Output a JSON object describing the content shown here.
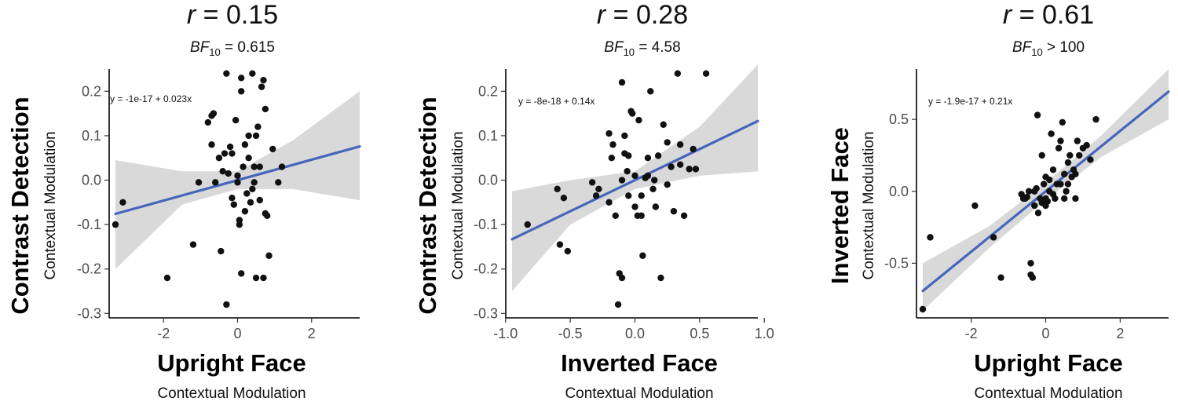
{
  "colors": {
    "point": "#111111",
    "fit_line": "#4466bb",
    "ci_band": "#d9d9d9"
  },
  "chart_data": [
    {
      "type": "scatter",
      "title": "r = 0.15",
      "title_parts": {
        "r_symbol": "r",
        "r_value": " = 0.15"
      },
      "subtitle": "BF10 = 0.615",
      "subtitle_parts": {
        "bf": "BF",
        "sub": "10",
        "rest": " = 0.615"
      },
      "xlabel": "Upright Face",
      "xlabel_sub": "Contextual Modulation",
      "ylabel": "Contrast Detection",
      "ylabel_sub": "Contextual Modulation",
      "xlim": [
        -3.3,
        3.3
      ],
      "ylim": [
        -0.31,
        0.25
      ],
      "xticks": [
        -2,
        0,
        2
      ],
      "yticks": [
        -0.3,
        -0.2,
        -0.1,
        0.0,
        0.1,
        0.2
      ],
      "ytick_labels": [
        "-0.3",
        "-0.2",
        "-0.1",
        "0.0",
        "0.1",
        "0.2"
      ],
      "equation": "y = -1e-17 + 0.023x",
      "fit": {
        "intercept": 0,
        "slope": 0.023
      },
      "ci": [
        [
          -3.3,
          -0.2,
          0.045
        ],
        [
          -1.5,
          -0.055,
          0.02
        ],
        [
          0,
          -0.02,
          0.02
        ],
        [
          1.5,
          -0.02,
          0.09
        ],
        [
          3.3,
          -0.045,
          0.2
        ]
      ],
      "points": [
        [
          -3.3,
          -0.1
        ],
        [
          -3.1,
          -0.05
        ],
        [
          -1.9,
          -0.22
        ],
        [
          -1.2,
          -0.145
        ],
        [
          -1.05,
          -0.005
        ],
        [
          -0.7,
          0.145
        ],
        [
          -0.7,
          0.08
        ],
        [
          -0.65,
          0.15
        ],
        [
          -0.6,
          -0.005
        ],
        [
          -0.5,
          0.05
        ],
        [
          -0.45,
          -0.16
        ],
        [
          -0.4,
          0.02
        ],
        [
          -0.3,
          0.24
        ],
        [
          -0.3,
          -0.28
        ],
        [
          -0.25,
          0.015
        ],
        [
          -0.2,
          0.075
        ],
        [
          -0.15,
          0.06
        ],
        [
          -0.1,
          -0.055
        ],
        [
          -0.05,
          0.135
        ],
        [
          0.0,
          0.01
        ],
        [
          0.05,
          -0.1
        ],
        [
          0.05,
          -0.09
        ],
        [
          0.1,
          0.23
        ],
        [
          0.1,
          0.2
        ],
        [
          0.1,
          -0.21
        ],
        [
          0.15,
          0.03
        ],
        [
          0.2,
          0.08
        ],
        [
          0.25,
          -0.03
        ],
        [
          0.3,
          0.05
        ],
        [
          0.35,
          -0.05
        ],
        [
          0.4,
          0.24
        ],
        [
          0.4,
          -0.02
        ],
        [
          0.45,
          -0.005
        ],
        [
          0.5,
          -0.22
        ],
        [
          0.5,
          0.1
        ],
        [
          0.55,
          0.12
        ],
        [
          0.6,
          -0.045
        ],
        [
          0.65,
          0.21
        ],
        [
          0.7,
          0.225
        ],
        [
          0.7,
          -0.22
        ],
        [
          0.75,
          0.16
        ],
        [
          0.8,
          -0.08
        ],
        [
          0.85,
          -0.17
        ],
        [
          0.95,
          0.07
        ],
        [
          1.1,
          -0.005
        ],
        [
          1.2,
          0.03
        ],
        [
          -0.8,
          0.13
        ],
        [
          0.0,
          -0.005
        ],
        [
          0.3,
          0.1
        ],
        [
          -0.35,
          0.06
        ],
        [
          0.6,
          0.03
        ],
        [
          0.2,
          -0.07
        ],
        [
          -0.15,
          -0.04
        ],
        [
          0.45,
          0.03
        ],
        [
          0.75,
          -0.075
        ]
      ]
    },
    {
      "type": "scatter",
      "title": "r = 0.28",
      "title_parts": {
        "r_symbol": "r",
        "r_value": " = 0.28"
      },
      "subtitle": "BF10 = 4.58",
      "subtitle_parts": {
        "bf": "BF",
        "sub": "10",
        "rest": " = 4.58"
      },
      "xlabel": "Inverted Face",
      "xlabel_sub": "Contextual Modulation",
      "ylabel": "Contrast Detection",
      "ylabel_sub": "Contextual Modulation",
      "xlim": [
        -0.95,
        0.95
      ],
      "ylim": [
        -0.31,
        0.25
      ],
      "xticks": [
        -1.0,
        -0.5,
        0.0,
        0.5,
        1.0
      ],
      "xtick_labels": [
        "-1.0",
        "-0.5",
        "0.0",
        "0.5",
        "1.0"
      ],
      "yticks": [
        -0.3,
        -0.2,
        -0.1,
        0.0,
        0.1,
        0.2
      ],
      "ytick_labels": [
        "-0.3",
        "-0.2",
        "-0.1",
        "0.0",
        "0.1",
        "0.2"
      ],
      "equation": "y = -8e-18 + 0.14x",
      "fit": {
        "intercept": 0,
        "slope": 0.14
      },
      "ci": [
        [
          -0.95,
          -0.25,
          -0.025
        ],
        [
          -0.5,
          -0.1,
          0.0
        ],
        [
          0,
          -0.02,
          0.02
        ],
        [
          0.5,
          0.01,
          0.12
        ],
        [
          0.95,
          0.02,
          0.26
        ]
      ],
      "points": [
        [
          -0.83,
          -0.1
        ],
        [
          -0.6,
          -0.02
        ],
        [
          -0.58,
          -0.145
        ],
        [
          -0.55,
          -0.04
        ],
        [
          -0.52,
          -0.16
        ],
        [
          -0.33,
          -0.005
        ],
        [
          -0.28,
          -0.02
        ],
        [
          -0.2,
          0.105
        ],
        [
          -0.2,
          -0.05
        ],
        [
          -0.17,
          0.08
        ],
        [
          -0.15,
          -0.08
        ],
        [
          -0.13,
          -0.28
        ],
        [
          -0.12,
          -0.21
        ],
        [
          -0.1,
          -0.22
        ],
        [
          -0.1,
          0.22
        ],
        [
          -0.1,
          0.0
        ],
        [
          -0.08,
          0.06
        ],
        [
          -0.06,
          0.02
        ],
        [
          -0.05,
          0.055
        ],
        [
          -0.05,
          -0.035
        ],
        [
          -0.03,
          0.155
        ],
        [
          -0.02,
          0.15
        ],
        [
          0.0,
          -0.06
        ],
        [
          0.02,
          -0.08
        ],
        [
          0.03,
          0.135
        ],
        [
          0.05,
          -0.08
        ],
        [
          0.06,
          -0.17
        ],
        [
          0.08,
          0.005
        ],
        [
          0.1,
          0.01
        ],
        [
          0.12,
          0.2
        ],
        [
          0.14,
          -0.02
        ],
        [
          0.16,
          -0.06
        ],
        [
          0.18,
          0.055
        ],
        [
          0.2,
          -0.22
        ],
        [
          0.22,
          0.125
        ],
        [
          0.25,
          0.085
        ],
        [
          0.28,
          0.03
        ],
        [
          0.3,
          -0.07
        ],
        [
          0.33,
          0.24
        ],
        [
          0.35,
          0.08
        ],
        [
          0.38,
          -0.08
        ],
        [
          0.42,
          0.025
        ],
        [
          0.45,
          0.07
        ],
        [
          0.47,
          0.025
        ],
        [
          0.55,
          0.24
        ],
        [
          -0.18,
          0.05
        ],
        [
          0.1,
          0.05
        ],
        [
          -0.08,
          0.1
        ],
        [
          0.0,
          0.01
        ],
        [
          0.15,
          0.0
        ],
        [
          -0.3,
          -0.035
        ],
        [
          0.25,
          -0.01
        ],
        [
          0.05,
          -0.035
        ],
        [
          0.35,
          0.035
        ]
      ]
    },
    {
      "type": "scatter",
      "title": "r = 0.61",
      "title_parts": {
        "r_symbol": "r",
        "r_value": " = 0.61"
      },
      "subtitle": "BF10 > 100",
      "subtitle_parts": {
        "bf": "BF",
        "sub": "10",
        "rest": " > 100"
      },
      "xlabel": "Upright Face",
      "xlabel_sub": "Contextual Modulation",
      "ylabel": "Inverted Face",
      "ylabel_sub": "Contextual Modulation",
      "xlim": [
        -3.3,
        3.3
      ],
      "ylim": [
        -0.88,
        0.85
      ],
      "xticks": [
        -2,
        0,
        2
      ],
      "yticks": [
        -0.5,
        0.0,
        0.5
      ],
      "ytick_labels": [
        "-0.5",
        "0.0",
        "0.5"
      ],
      "equation": "y = -1.9e-17 + 0.21x",
      "fit": {
        "intercept": 0,
        "slope": 0.21
      },
      "ci": [
        [
          -3.3,
          -0.83,
          -0.5
        ],
        [
          -1.5,
          -0.39,
          -0.24
        ],
        [
          0,
          -0.06,
          0.06
        ],
        [
          1.5,
          0.24,
          0.39
        ],
        [
          3.3,
          0.5,
          0.85
        ]
      ],
      "points": [
        [
          -3.3,
          -0.82
        ],
        [
          -3.1,
          -0.32
        ],
        [
          -1.9,
          -0.1
        ],
        [
          -1.4,
          -0.32
        ],
        [
          -1.2,
          -0.6
        ],
        [
          -0.65,
          -0.02
        ],
        [
          -0.6,
          -0.05
        ],
        [
          -0.5,
          -0.04
        ],
        [
          -0.45,
          0.0
        ],
        [
          -0.4,
          -0.5
        ],
        [
          -0.4,
          -0.58
        ],
        [
          -0.35,
          -0.6
        ],
        [
          -0.3,
          -0.1
        ],
        [
          -0.25,
          0.02
        ],
        [
          -0.22,
          0.53
        ],
        [
          -0.2,
          -0.15
        ],
        [
          -0.15,
          -0.05
        ],
        [
          -0.1,
          0.25
        ],
        [
          -0.05,
          0.05
        ],
        [
          0.0,
          0.1
        ],
        [
          0.0,
          -0.1
        ],
        [
          0.05,
          -0.07
        ],
        [
          0.1,
          0.08
        ],
        [
          0.15,
          0.4
        ],
        [
          0.2,
          0.15
        ],
        [
          0.25,
          -0.05
        ],
        [
          0.3,
          0.05
        ],
        [
          0.35,
          0.3
        ],
        [
          0.4,
          0.35
        ],
        [
          0.45,
          0.48
        ],
        [
          0.5,
          0.12
        ],
        [
          0.5,
          -0.05
        ],
        [
          0.55,
          0.0
        ],
        [
          0.6,
          0.2
        ],
        [
          0.65,
          0.25
        ],
        [
          0.7,
          0.1
        ],
        [
          0.75,
          0.15
        ],
        [
          0.8,
          -0.05
        ],
        [
          0.85,
          0.35
        ],
        [
          0.9,
          0.25
        ],
        [
          1.0,
          0.3
        ],
        [
          1.1,
          0.32
        ],
        [
          1.2,
          0.22
        ],
        [
          1.35,
          0.5
        ],
        [
          -0.55,
          -0.05
        ],
        [
          0.1,
          0.0
        ],
        [
          -0.3,
          0.0
        ],
        [
          0.4,
          0.05
        ],
        [
          0.0,
          -0.05
        ],
        [
          0.2,
          -0.02
        ],
        [
          -0.1,
          -0.08
        ],
        [
          0.6,
          0.05
        ],
        [
          0.8,
          0.12
        ]
      ]
    }
  ]
}
